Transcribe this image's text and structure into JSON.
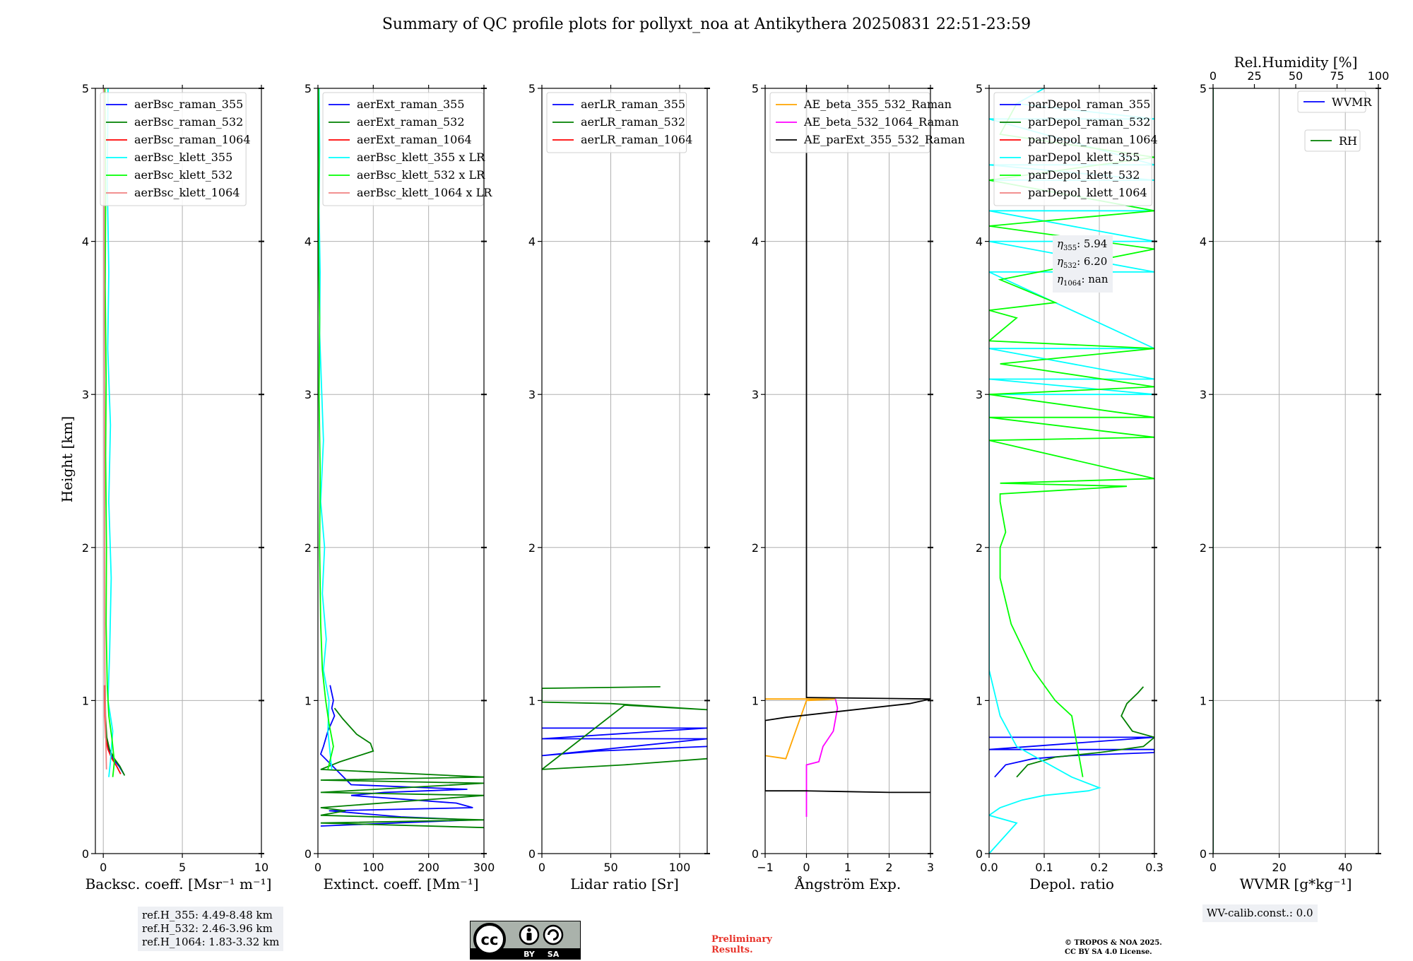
{
  "figure": {
    "title": "Summary of QC profile plots for pollyxt_noa at Antikythera 20250831 22:51-23:59",
    "ylabel": "Height [km]",
    "ref_heights": [
      "ref.H_355: 4.49-8.48 km",
      "ref.H_532: 2.46-3.96 km",
      "ref.H_1064: 1.83-3.32 km"
    ],
    "wv_calib": "WV-calib.const.: 0.0",
    "eta_lines": [
      "η355: 5.94",
      "η532: 6.20",
      "η1064: nan"
    ],
    "preliminary": [
      "Preliminary",
      "Results."
    ],
    "copyright": [
      "© TROPOS & NOA 2025.",
      "CC BY SA 4.0 License."
    ],
    "license_badge": {
      "cc": "cc",
      "by": "BY",
      "sa": "SA",
      "colors": {
        "bg": "#aab2ab",
        "dark": "#000000"
      }
    }
  },
  "chart_data": [
    {
      "type": "line",
      "xlabel": "Backsc. coeff. [Msr⁻¹ m⁻¹]",
      "xlim": [
        -0.5,
        10
      ],
      "ylim": [
        0,
        5
      ],
      "xticks": [
        0,
        5,
        10
      ],
      "yticks": [
        0,
        1,
        2,
        3,
        4,
        5
      ],
      "grid": true,
      "legend": "top-left",
      "series": [
        {
          "name": "aerBsc_raman_355",
          "color": "#0000ff",
          "x": [
            0.1,
            0.12,
            0.2,
            0.35,
            0.6,
            1.0,
            1.3
          ],
          "y": [
            1.1,
            0.9,
            0.75,
            0.68,
            0.62,
            0.57,
            0.52
          ]
        },
        {
          "name": "aerBsc_raman_532",
          "color": "#008000",
          "x": [
            0.12,
            0.14,
            0.22,
            0.4,
            0.7,
            1.05,
            1.35
          ],
          "y": [
            1.1,
            0.9,
            0.76,
            0.68,
            0.62,
            0.57,
            0.51
          ]
        },
        {
          "name": "aerBsc_raman_1064",
          "color": "#ff0000",
          "x": [
            0.08,
            0.1,
            0.15,
            0.3,
            0.55,
            0.85,
            1.1
          ],
          "y": [
            1.1,
            0.9,
            0.76,
            0.68,
            0.62,
            0.57,
            0.52
          ]
        },
        {
          "name": "aerBsc_klett_355",
          "color": "#00ffff",
          "x": [
            0.3,
            0.25,
            0.35,
            0.28,
            0.45,
            0.35,
            0.5,
            0.4,
            0.3,
            0.6,
            0.45,
            0.35
          ],
          "y": [
            5.0,
            4.4,
            3.8,
            3.3,
            2.8,
            2.3,
            1.8,
            1.3,
            1.0,
            0.8,
            0.6,
            0.5
          ]
        },
        {
          "name": "aerBsc_klett_532",
          "color": "#00ff00",
          "x": [
            0.1,
            0.15,
            0.12,
            0.18,
            0.15,
            0.2,
            0.18,
            0.25,
            0.35,
            0.55,
            0.7,
            0.6
          ],
          "y": [
            5.0,
            4.3,
            3.7,
            3.1,
            2.6,
            2.0,
            1.5,
            1.1,
            0.9,
            0.75,
            0.6,
            0.5
          ]
        },
        {
          "name": "aerBsc_klett_1064",
          "color": "#f08080",
          "x": [
            0.05,
            0.06,
            0.07,
            0.08,
            0.1,
            0.15,
            0.2
          ],
          "y": [
            5.0,
            4.0,
            3.0,
            2.0,
            1.2,
            0.8,
            0.55
          ]
        }
      ]
    },
    {
      "type": "line",
      "xlabel": "Extinct. coeff. [Mm⁻¹]",
      "xlim": [
        0,
        300
      ],
      "ylim": [
        0,
        5
      ],
      "xticks": [
        0,
        100,
        200,
        300
      ],
      "yticks": [
        0,
        1,
        2,
        3,
        4,
        5
      ],
      "grid": true,
      "legend": "top-left",
      "series": [
        {
          "name": "aerExt_raman_355",
          "color": "#0000ff",
          "x": [
            22,
            28,
            25,
            30,
            18,
            10,
            5,
            60,
            200,
            270,
            120,
            60,
            250,
            280,
            20,
            150,
            280,
            5
          ],
          "y": [
            1.1,
            1.0,
            0.95,
            0.9,
            0.8,
            0.7,
            0.65,
            0.45,
            0.43,
            0.42,
            0.4,
            0.38,
            0.33,
            0.3,
            0.28,
            0.24,
            0.22,
            0.18
          ]
        },
        {
          "name": "aerExt_raman_532",
          "color": "#008000",
          "x": [
            30,
            45,
            60,
            70,
            95,
            100,
            40,
            5,
            300,
            5,
            300,
            5,
            300,
            5,
            50,
            5,
            300,
            5,
            300
          ],
          "y": [
            0.95,
            0.88,
            0.82,
            0.78,
            0.72,
            0.67,
            0.6,
            0.55,
            0.5,
            0.48,
            0.46,
            0.4,
            0.38,
            0.3,
            0.28,
            0.25,
            0.22,
            0.2,
            0.17
          ]
        },
        {
          "name": "aerExt_raman_1064",
          "color": "#ff0000",
          "x": [],
          "y": []
        },
        {
          "name": "aerBsc_klett_355 x LR",
          "color": "#00ffff",
          "x": [
            2,
            3,
            2,
            4,
            3,
            6,
            10,
            5,
            12,
            8,
            15,
            10,
            20,
            18,
            25
          ],
          "y": [
            5.0,
            4.6,
            4.2,
            3.8,
            3.4,
            3.1,
            2.7,
            2.3,
            2.0,
            1.7,
            1.4,
            1.2,
            1.0,
            0.8,
            0.55
          ]
        },
        {
          "name": "aerBsc_klett_532 x LR",
          "color": "#00ff00",
          "x": [
            1,
            2,
            1,
            3,
            2,
            4,
            3,
            5,
            8,
            14,
            20,
            28,
            18
          ],
          "y": [
            5.0,
            4.5,
            4.0,
            3.5,
            3.0,
            2.5,
            2.0,
            1.5,
            1.2,
            1.0,
            0.85,
            0.7,
            0.55
          ]
        },
        {
          "name": "aerBsc_klett_1064 x LR",
          "color": "#f08080",
          "x": [],
          "y": []
        }
      ]
    },
    {
      "type": "line",
      "xlabel": "Lidar ratio [Sr]",
      "xlim": [
        0,
        120
      ],
      "ylim": [
        0,
        5
      ],
      "xticks": [
        0,
        50,
        100
      ],
      "yticks": [
        0,
        1,
        2,
        3,
        4,
        5
      ],
      "grid": true,
      "legend": "top-left",
      "series": [
        {
          "name": "aerLR_raman_355",
          "color": "#0000ff",
          "x": [
            120,
            0,
            120,
            0,
            120,
            0,
            40,
            120
          ],
          "y": [
            0.82,
            0.82,
            0.82,
            0.75,
            0.75,
            0.64,
            0.67,
            0.7
          ]
        },
        {
          "name": "aerLR_raman_532",
          "color": "#008000",
          "x": [
            86,
            0,
            0,
            50,
            120,
            80,
            100,
            60,
            0,
            60,
            120
          ],
          "y": [
            1.09,
            1.08,
            0.99,
            0.98,
            0.94,
            0.96,
            0.95,
            0.97,
            0.55,
            0.58,
            0.62
          ]
        },
        {
          "name": "aerLR_raman_1064",
          "color": "#ff0000",
          "x": [],
          "y": []
        }
      ]
    },
    {
      "type": "line",
      "xlabel": "Ångström Exp.",
      "xlim": [
        -1,
        3
      ],
      "ylim": [
        0,
        5
      ],
      "xticks": [
        -1,
        0,
        1,
        2,
        3
      ],
      "yticks": [
        0,
        1,
        2,
        3,
        4,
        5
      ],
      "grid": true,
      "legend": "top-left",
      "series": [
        {
          "name": "AE_beta_355_532_Raman",
          "color": "#ffa500",
          "x": [
            -1,
            0,
            0.7,
            0.0,
            -0.5,
            -1
          ],
          "y": [
            1.01,
            1.01,
            1.01,
            1.0,
            0.62,
            0.64
          ]
        },
        {
          "name": "AE_beta_532_1064_Raman",
          "color": "#ff00ff",
          "x": [
            0.7,
            0.75,
            0.65,
            0.4,
            0.3,
            0.0,
            0.0,
            0.0
          ],
          "y": [
            1.01,
            0.95,
            0.8,
            0.7,
            0.6,
            0.58,
            0.4,
            0.24
          ]
        },
        {
          "name": "AE_parExt_355_532_Raman",
          "color": "#000000",
          "x": [
            0,
            0,
            0,
            3,
            2.5,
            1.5,
            0.5,
            -0.5,
            -1,
            -1,
            0,
            1,
            2,
            3
          ],
          "y": [
            5.0,
            3.0,
            1.02,
            1.01,
            0.98,
            0.95,
            0.92,
            0.89,
            0.87,
            0.41,
            0.41,
            0.405,
            0.4,
            0.4
          ]
        }
      ]
    },
    {
      "type": "line",
      "xlabel": "Depol. ratio",
      "xlim": [
        0,
        0.3
      ],
      "ylim": [
        0,
        5
      ],
      "xticks": [
        0.0,
        0.1,
        0.2,
        0.3
      ],
      "xtick_labels": [
        "0.0",
        "0.1",
        "0.2",
        "0.3"
      ],
      "yticks": [
        0,
        1,
        2,
        3,
        4,
        5
      ],
      "grid": true,
      "legend": "top-left",
      "series": [
        {
          "name": "parDepol_raman_355",
          "color": "#0000ff",
          "x": [
            0.01,
            0.03,
            0.08,
            0.15,
            0.3,
            0.3,
            0.0,
            0.3,
            0.0
          ],
          "y": [
            0.5,
            0.58,
            0.62,
            0.64,
            0.66,
            0.68,
            0.68,
            0.76,
            0.76
          ]
        },
        {
          "name": "parDepol_raman_532",
          "color": "#008000",
          "x": [
            0.05,
            0.07,
            0.12,
            0.2,
            0.28,
            0.3,
            0.26,
            0.24,
            0.25,
            0.27,
            0.28
          ],
          "y": [
            0.5,
            0.58,
            0.63,
            0.66,
            0.7,
            0.76,
            0.8,
            0.9,
            0.98,
            1.05,
            1.09
          ]
        },
        {
          "name": "parDepol_raman_1064",
          "color": "#ff0000",
          "x": [],
          "y": []
        },
        {
          "name": "parDepol_klett_355",
          "color": "#00ffff",
          "x": [
            0.0,
            0.05,
            0.0,
            0.02,
            0.06,
            0.1,
            0.18,
            0.2,
            0.15,
            0.05,
            0.02,
            0.0,
            0.0,
            0.3,
            0.0,
            0.3,
            0.0,
            0.3,
            0.0,
            0.3,
            0.0,
            0.3,
            0.0,
            0.3,
            0.0,
            0.3,
            0.0,
            0.3,
            0.0,
            0.3,
            0.05,
            0.1
          ],
          "y": [
            0.0,
            0.2,
            0.25,
            0.3,
            0.35,
            0.38,
            0.41,
            0.43,
            0.5,
            0.7,
            0.9,
            1.2,
            3.0,
            3.0,
            3.1,
            3.1,
            3.3,
            3.3,
            3.8,
            3.8,
            4.0,
            4.0,
            4.2,
            4.2,
            4.4,
            4.4,
            4.5,
            4.5,
            4.8,
            4.8,
            4.9,
            5.0
          ]
        },
        {
          "name": "parDepol_klett_532",
          "color": "#00ff00",
          "x": [
            0.17,
            0.16,
            0.15,
            0.12,
            0.08,
            0.04,
            0.02,
            0.02,
            0.03,
            0.02,
            0.02,
            0.25,
            0.02,
            0.3,
            0.0,
            0.3,
            0.0,
            0.3,
            0.0,
            0.3,
            0.02,
            0.3,
            0.0,
            0.05,
            0.0,
            0.12,
            0.02,
            0.3,
            0.0,
            0.3,
            0.0,
            0.3,
            0.02,
            0.05
          ],
          "y": [
            0.5,
            0.7,
            0.9,
            1.0,
            1.2,
            1.5,
            1.8,
            2.0,
            2.1,
            2.3,
            2.35,
            2.4,
            2.42,
            2.45,
            2.7,
            2.72,
            2.85,
            2.85,
            3.0,
            3.05,
            3.2,
            3.3,
            3.35,
            3.5,
            3.55,
            3.6,
            3.75,
            3.95,
            4.1,
            4.2,
            4.4,
            4.55,
            4.7,
            4.9
          ]
        },
        {
          "name": "parDepol_klett_1064",
          "color": "#f08080",
          "x": [],
          "y": []
        }
      ]
    },
    {
      "type": "line",
      "xlabel": "WVMR [g*kg⁻¹]",
      "xlim": [
        0,
        50
      ],
      "ylim": [
        0,
        5
      ],
      "xticks": [
        0,
        20,
        40
      ],
      "yticks": [
        0,
        1,
        2,
        3,
        4,
        5
      ],
      "top_axis": {
        "label": "Rel.Humidity [%]",
        "ticks": [
          0,
          25,
          50,
          75,
          100
        ],
        "lim": [
          0,
          100
        ]
      },
      "grid": true,
      "legend": "top-right",
      "series": [
        {
          "name": "WVMR",
          "color": "#0000ff",
          "x": [
            0,
            0
          ],
          "y": [
            0,
            5
          ]
        },
        {
          "name": "RH",
          "color": "#008000",
          "x": [
            0,
            0
          ],
          "y": [
            0,
            5
          ]
        }
      ]
    }
  ]
}
